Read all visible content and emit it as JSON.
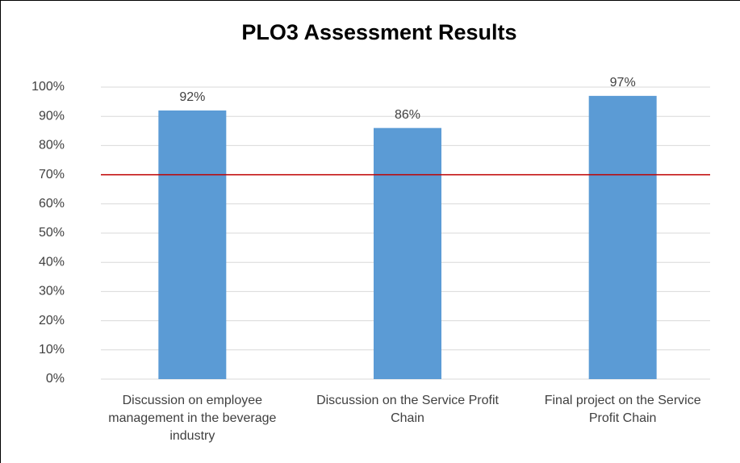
{
  "chart_data": {
    "type": "bar",
    "title": "PLO3 Assessment Results",
    "categories": [
      "Discussion on employee management in the beverage industry",
      "Discussion on the Service Profit Chain",
      "Final project on the Service Profit Chain"
    ],
    "values": [
      92,
      86,
      97
    ],
    "value_labels": [
      "92%",
      "86%",
      "97%"
    ],
    "color": "#5b9bd5",
    "ylim": [
      0,
      100
    ],
    "yticks": [
      {
        "value": 0,
        "label": "0%"
      },
      {
        "value": 10,
        "label": "10%"
      },
      {
        "value": 20,
        "label": "20%"
      },
      {
        "value": 30,
        "label": "30%"
      },
      {
        "value": 40,
        "label": "40%"
      },
      {
        "value": 50,
        "label": "50%"
      },
      {
        "value": 60,
        "label": "60%"
      },
      {
        "value": 70,
        "label": "70%"
      },
      {
        "value": 80,
        "label": "80%"
      },
      {
        "value": 90,
        "label": "90%"
      },
      {
        "value": 100,
        "label": "100%"
      }
    ],
    "grid": true,
    "reference_line": {
      "value": 70,
      "color": "#c00000"
    }
  }
}
